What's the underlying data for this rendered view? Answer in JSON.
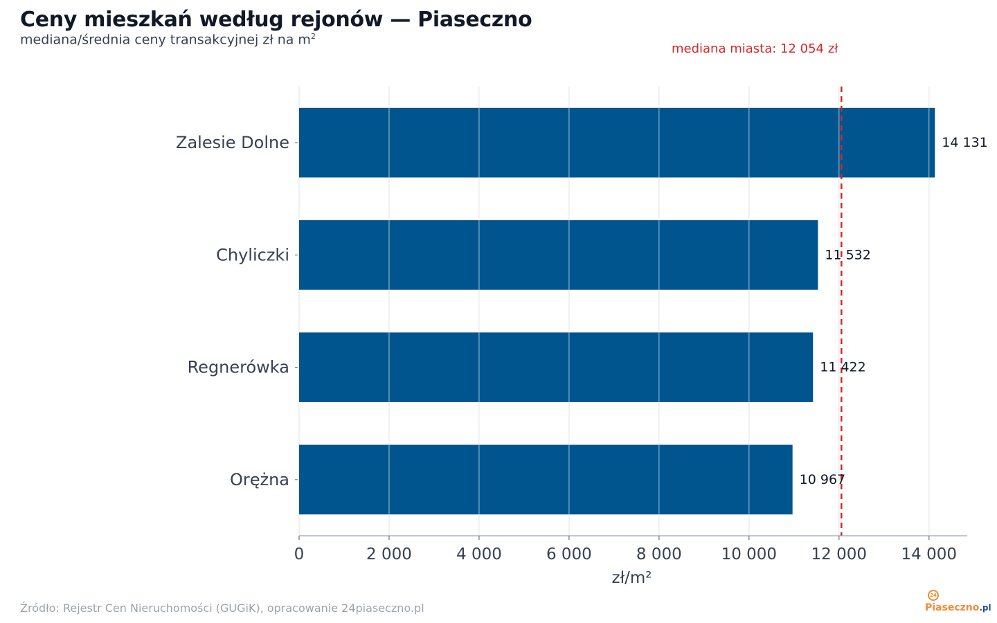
{
  "header": {
    "title": "Ceny mieszkań według rejonów — Piaseczno",
    "subtitle": "mediana/średnia ceny transakcyjnej zł na m",
    "subtitle_sup": "2"
  },
  "chart_data": {
    "type": "bar",
    "orientation": "horizontal",
    "categories": [
      "Zalesie Dolne",
      "Chyliczki",
      "Regnerówka",
      "Orężna"
    ],
    "values": [
      14131,
      11532,
      11422,
      10967
    ],
    "value_labels": [
      "14 131",
      "11 532",
      "11 422",
      "10 967"
    ],
    "xlabel": "zł/m²",
    "ylabel": "",
    "xlim": [
      0,
      14850
    ],
    "x_ticks": [
      0,
      2000,
      4000,
      6000,
      8000,
      10000,
      12000,
      14000
    ],
    "x_tick_labels": [
      "0",
      "2 000",
      "4 000",
      "6 000",
      "8 000",
      "10 000",
      "12 000",
      "14 000"
    ],
    "grid": "vertical",
    "bar_color": "#00558e",
    "reference_line": {
      "value": 12054,
      "label": "mediana miasta: 12 054 zł",
      "color": "#d62728",
      "style": "dashed"
    }
  },
  "footer": {
    "source": "Źródło: Rejestr Cen Nieruchomości (GUGiK), opracowanie 24piaseczno.pl",
    "logo_badge": "24",
    "logo_main": "Piaseczno",
    "logo_tld": ".pl"
  }
}
